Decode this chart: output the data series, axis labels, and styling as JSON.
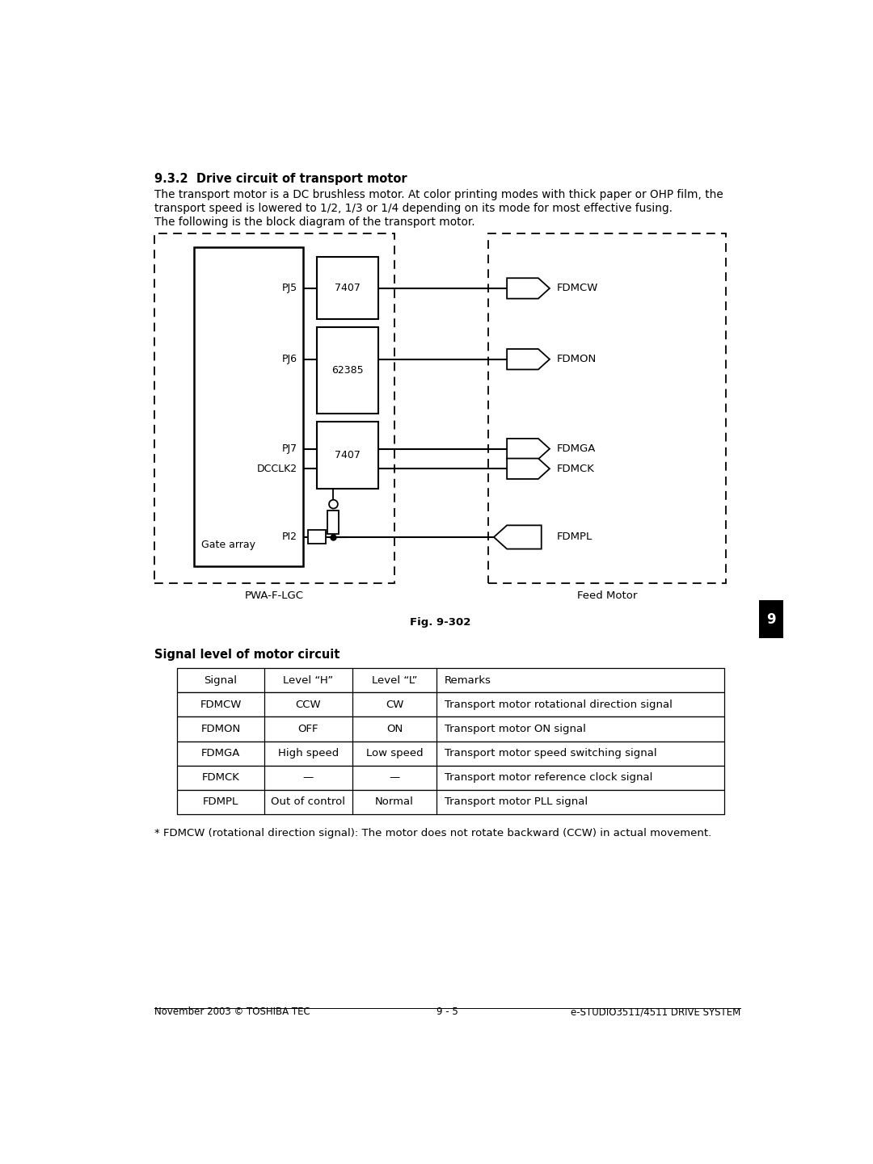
{
  "page_title": "9.3.2  Drive circuit of transport motor",
  "paragraph1": "The transport motor is a DC brushless motor. At color printing modes with thick paper or OHP film, the",
  "paragraph2": "transport speed is lowered to 1/2, 1/3 or 1/4 depending on its mode for most effective fusing.",
  "paragraph3": "The following is the block diagram of the transport motor.",
  "fig_caption": "Fig. 9-302",
  "label_pwa": "PWA-F-LGC",
  "label_feed": "Feed Motor",
  "signals_title": "Signal level of motor circuit",
  "table_headers": [
    "Signal",
    "Level “H”",
    "Level “L”",
    "Remarks"
  ],
  "table_rows": [
    [
      "FDMCW",
      "CCW",
      "CW",
      "Transport motor rotational direction signal"
    ],
    [
      "FDMON",
      "OFF",
      "ON",
      "Transport motor ON signal"
    ],
    [
      "FDMGA",
      "High speed",
      "Low speed",
      "Transport motor speed switching signal"
    ],
    [
      "FDMCK",
      "—",
      "—",
      "Transport motor reference clock signal"
    ],
    [
      "FDMPL",
      "Out of control",
      "Normal",
      "Transport motor PLL signal"
    ]
  ],
  "footnote": "* FDMCW (rotational direction signal): The motor does not rotate backward (CCW) in actual movement.",
  "footer_left": "November 2003 © TOSHIBA TEC",
  "footer_center": "9 - 5",
  "footer_right": "e-STUDIO3511/4511 DRIVE SYSTEM",
  "tab_label": "9",
  "bg_color": "#ffffff",
  "text_color": "#000000"
}
